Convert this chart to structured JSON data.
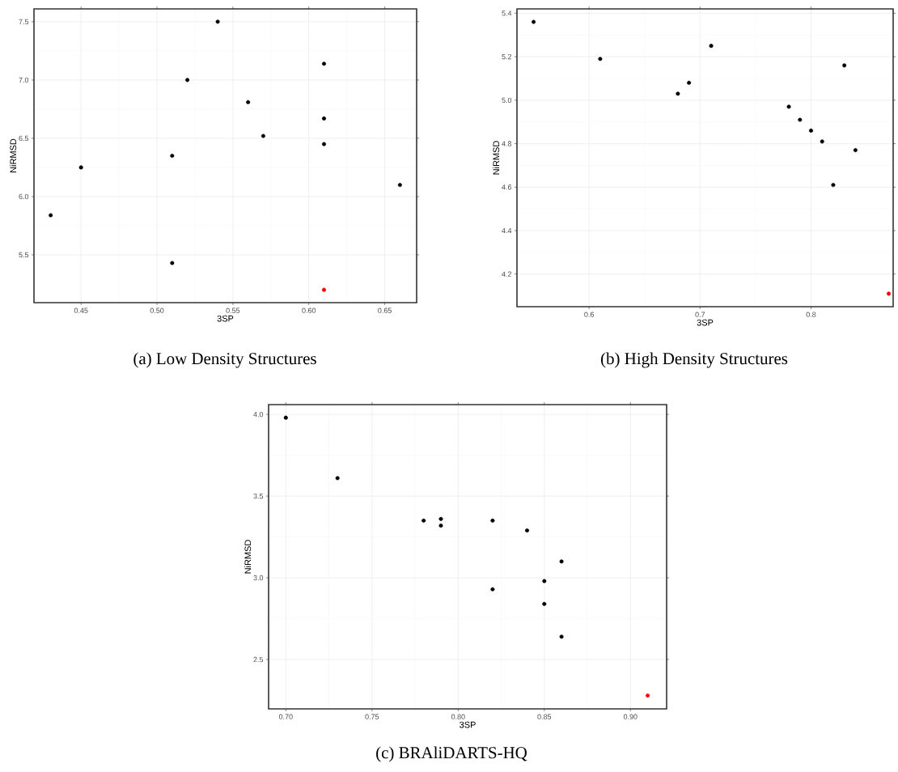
{
  "chart_data": [
    {
      "type": "scatter",
      "title": "(a) Low Density Structures",
      "xlabel": "3SP",
      "ylabel": "NiRMSD",
      "marker": "circle",
      "grid": true,
      "xlim": [
        0.419,
        0.671
      ],
      "ylim": [
        5.09,
        7.61
      ],
      "xticks": [
        0.45,
        {
          "value": 0.5,
          "label": "0.50"
        },
        0.55,
        {
          "value": 0.6,
          "label": "0.60"
        },
        0.65
      ],
      "yticks": [
        5.5,
        {
          "value": 6.0,
          "label": "6.0"
        },
        6.5,
        {
          "value": 7.0,
          "label": "7.0"
        },
        7.5
      ],
      "series": [
        {
          "color": "#000000",
          "x": [
            0.43,
            0.45,
            0.51,
            0.51,
            0.52,
            0.54,
            0.56,
            0.57,
            0.61,
            0.61,
            0.61,
            0.66
          ],
          "values": [
            5.84,
            6.25,
            6.35,
            5.43,
            7.0,
            7.5,
            6.81,
            6.52,
            7.14,
            6.67,
            6.45,
            6.1
          ]
        },
        {
          "color": "#ff0000",
          "x": [
            0.61
          ],
          "values": [
            5.2
          ]
        }
      ]
    },
    {
      "type": "scatter",
      "title": "(b) High Density Structures",
      "xlabel": "3SP",
      "ylabel": "NiRMSD",
      "marker": "circle",
      "grid": true,
      "xlim": [
        0.535,
        0.874
      ],
      "ylim": [
        4.05,
        5.42
      ],
      "xticks": [
        0.6,
        0.7,
        0.8
      ],
      "yticks": [
        4.2,
        4.4,
        4.6,
        4.8,
        {
          "value": 5.0,
          "label": "5.0"
        },
        5.2,
        5.4
      ],
      "series": [
        {
          "color": "#000000",
          "x": [
            0.55,
            0.61,
            0.68,
            0.69,
            0.71,
            0.78,
            0.79,
            0.8,
            0.81,
            0.82,
            0.83,
            0.84
          ],
          "values": [
            5.36,
            5.19,
            5.03,
            5.08,
            5.25,
            4.97,
            4.91,
            4.86,
            4.81,
            4.61,
            5.16,
            4.77
          ]
        },
        {
          "color": "#ff0000",
          "x": [
            0.87
          ],
          "values": [
            4.11
          ]
        }
      ]
    },
    {
      "type": "scatter",
      "title": "(c) BRAliDARTS-HQ",
      "xlabel": "3SP",
      "ylabel": "NiRMSD",
      "marker": "circle",
      "grid": true,
      "xlim": [
        0.69,
        0.921
      ],
      "ylim": [
        2.198,
        4.06
      ],
      "xticks": [
        {
          "value": 0.7,
          "label": "0.70"
        },
        0.75,
        {
          "value": 0.8,
          "label": "0.80"
        },
        0.85,
        {
          "value": 0.9,
          "label": "0.90"
        }
      ],
      "yticks": [
        2.5,
        {
          "value": 3.0,
          "label": "3.0"
        },
        3.5,
        {
          "value": 4.0,
          "label": "4.0"
        }
      ],
      "series": [
        {
          "color": "#000000",
          "x": [
            0.7,
            0.73,
            0.78,
            0.79,
            0.79,
            0.82,
            0.82,
            0.84,
            0.85,
            0.85,
            0.86,
            0.86
          ],
          "values": [
            3.98,
            3.61,
            3.35,
            3.36,
            3.32,
            3.35,
            2.93,
            3.29,
            2.98,
            2.84,
            3.1,
            2.64
          ]
        },
        {
          "color": "#ff0000",
          "x": [
            0.91
          ],
          "values": [
            2.28
          ]
        }
      ]
    }
  ]
}
